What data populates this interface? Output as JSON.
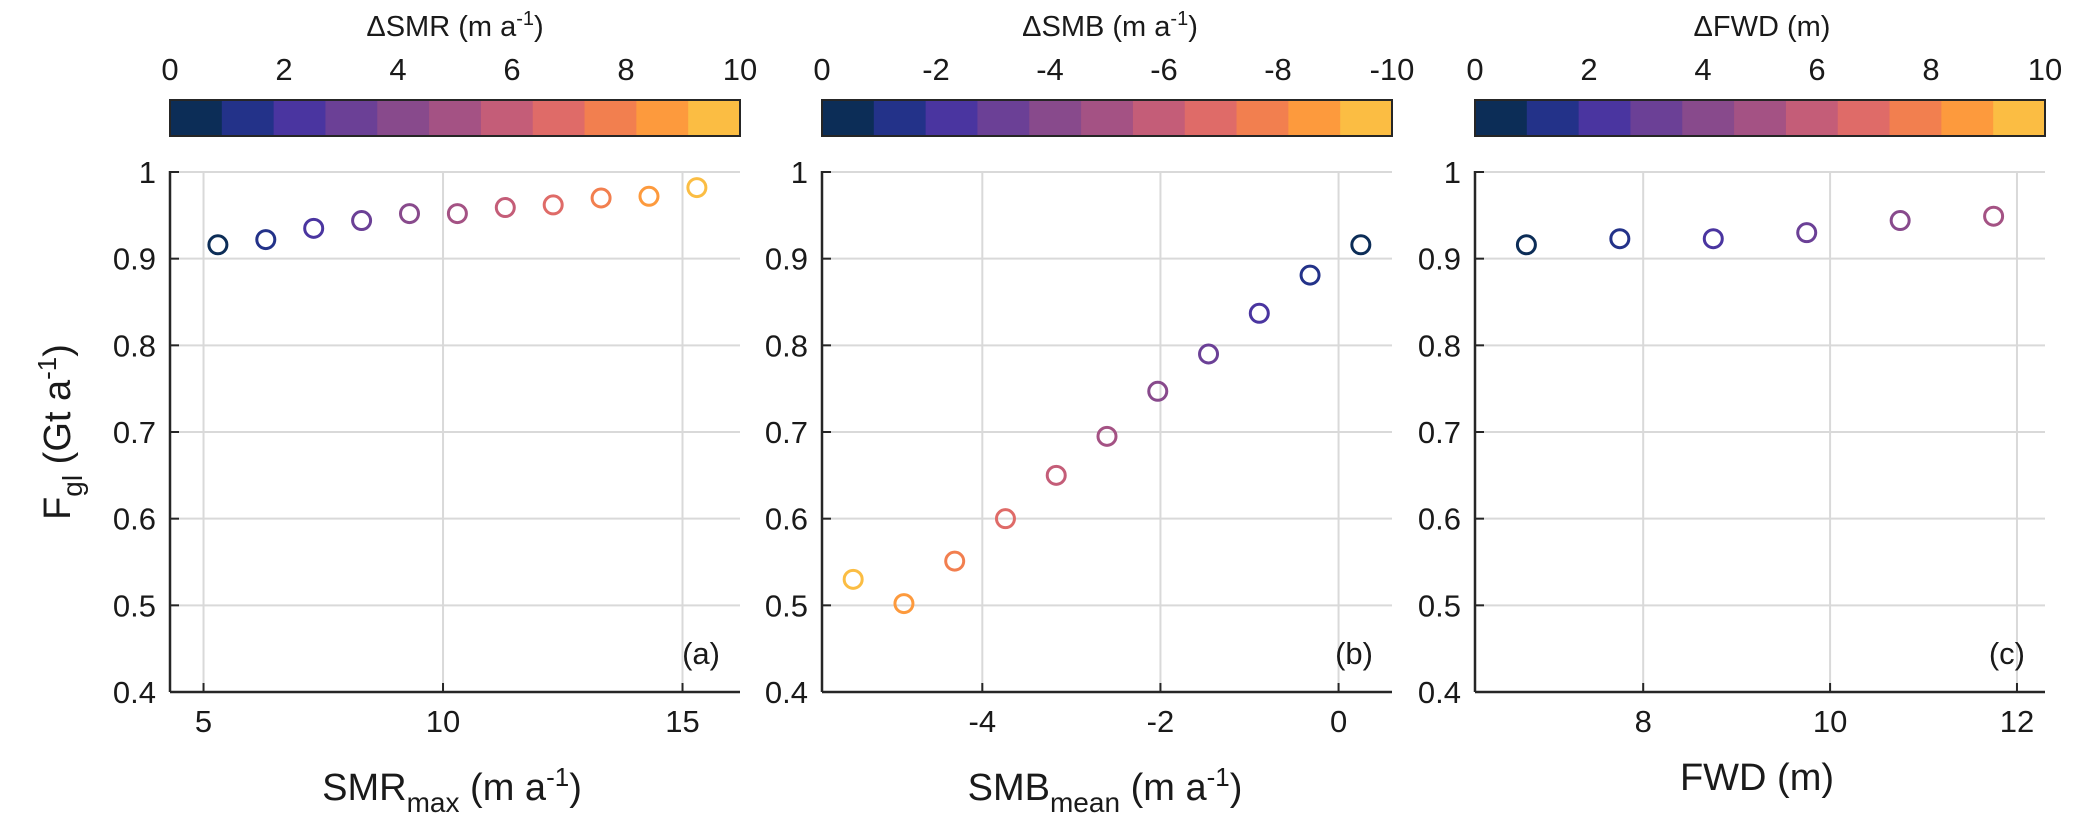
{
  "colors": {
    "colormap": [
      "#0c2d57",
      "#233289",
      "#4a35a0",
      "#6b4096",
      "#884a8c",
      "#a45284",
      "#c45d78",
      "#df6b68",
      "#f27f4f",
      "#fd9a3d",
      "#fbbd43"
    ],
    "grid": "#d9d9d9",
    "axis": "#262626"
  },
  "chart_data": [
    {
      "type": "scatter",
      "panel_label": "(a)",
      "xlabel_main": "SMR",
      "xlabel_sub": "max",
      "xlabel_unit": " (m a",
      "xlabel_sup": "-1",
      "xlabel_close": ")",
      "ylabel_main": "F",
      "ylabel_sub": "gl",
      "ylabel_unit": " (Gt a",
      "ylabel_sup": "-1",
      "ylabel_close": ")",
      "xlim": [
        4.3,
        16.2
      ],
      "ylim": [
        0.4,
        1.0
      ],
      "xticks": [
        5,
        10,
        15
      ],
      "xtick_labels": [
        "5",
        "10",
        "15"
      ],
      "yticks": [
        0.4,
        0.5,
        0.6,
        0.7,
        0.8,
        0.9,
        1.0
      ],
      "ytick_labels": [
        "0.4",
        "0.5",
        "0.6",
        "0.7",
        "0.8",
        "0.9",
        "1"
      ],
      "grid": true,
      "colorbar": {
        "title_main": "ΔSMR (m a",
        "title_sup": "-1",
        "title_close": ")",
        "tick_values": [
          0,
          2,
          4,
          6,
          8,
          10
        ],
        "tick_labels": [
          "0",
          "2",
          "4",
          "6",
          "8",
          "10"
        ],
        "range": [
          0,
          10
        ]
      },
      "points": [
        {
          "x": 5.3,
          "y": 0.916,
          "c": 0
        },
        {
          "x": 6.3,
          "y": 0.922,
          "c": 1
        },
        {
          "x": 7.3,
          "y": 0.935,
          "c": 2
        },
        {
          "x": 8.3,
          "y": 0.944,
          "c": 3
        },
        {
          "x": 9.3,
          "y": 0.952,
          "c": 4
        },
        {
          "x": 10.3,
          "y": 0.952,
          "c": 5
        },
        {
          "x": 11.3,
          "y": 0.959,
          "c": 6
        },
        {
          "x": 12.3,
          "y": 0.962,
          "c": 7
        },
        {
          "x": 13.3,
          "y": 0.97,
          "c": 8
        },
        {
          "x": 14.3,
          "y": 0.972,
          "c": 9
        },
        {
          "x": 15.3,
          "y": 0.982,
          "c": 10
        }
      ]
    },
    {
      "type": "scatter",
      "panel_label": "(b)",
      "xlabel_main": "SMB",
      "xlabel_sub": "mean",
      "xlabel_unit": " (m a",
      "xlabel_sup": "-1",
      "xlabel_close": ")",
      "xlim": [
        -5.8,
        0.6
      ],
      "ylim": [
        0.4,
        1.0
      ],
      "xticks": [
        -4,
        -2,
        0
      ],
      "xtick_labels": [
        "-4",
        "-2",
        "0"
      ],
      "yticks": [
        0.4,
        0.5,
        0.6,
        0.7,
        0.8,
        0.9,
        1.0
      ],
      "ytick_labels": [
        "0.4",
        "0.5",
        "0.6",
        "0.7",
        "0.8",
        "0.9",
        "1"
      ],
      "grid": true,
      "colorbar": {
        "title_main": "ΔSMB (m a",
        "title_sup": "-1",
        "title_close": ")",
        "tick_values": [
          0,
          2,
          4,
          6,
          8,
          10
        ],
        "tick_labels": [
          "0",
          "-2",
          "-4",
          "-6",
          "-8",
          "-10"
        ],
        "range": [
          0,
          10
        ]
      },
      "points": [
        {
          "x": 0.25,
          "y": 0.916,
          "c": 0
        },
        {
          "x": -0.32,
          "y": 0.881,
          "c": 1
        },
        {
          "x": -0.89,
          "y": 0.837,
          "c": 2
        },
        {
          "x": -1.46,
          "y": 0.79,
          "c": 3
        },
        {
          "x": -2.03,
          "y": 0.747,
          "c": 4
        },
        {
          "x": -2.6,
          "y": 0.695,
          "c": 5
        },
        {
          "x": -3.17,
          "y": 0.65,
          "c": 6
        },
        {
          "x": -3.74,
          "y": 0.6,
          "c": 7
        },
        {
          "x": -4.31,
          "y": 0.551,
          "c": 8
        },
        {
          "x": -4.88,
          "y": 0.502,
          "c": 9
        },
        {
          "x": -5.45,
          "y": 0.53,
          "c": 10
        }
      ]
    },
    {
      "type": "scatter",
      "panel_label": "(c)",
      "xlabel_main": "FWD (m)",
      "xlim": [
        6.2,
        12.3
      ],
      "ylim": [
        0.4,
        1.0
      ],
      "xticks": [
        8,
        10,
        12
      ],
      "xtick_labels": [
        "8",
        "10",
        "12"
      ],
      "yticks": [
        0.4,
        0.5,
        0.6,
        0.7,
        0.8,
        0.9,
        1.0
      ],
      "ytick_labels": [
        "0.4",
        "0.5",
        "0.6",
        "0.7",
        "0.8",
        "0.9",
        "1"
      ],
      "grid": true,
      "colorbar": {
        "title_main": "ΔFWD (m)",
        "tick_values": [
          0,
          2,
          4,
          6,
          8,
          10
        ],
        "tick_labels": [
          "0",
          "2",
          "4",
          "6",
          "8",
          "10"
        ],
        "range": [
          0,
          10
        ]
      },
      "points": [
        {
          "x": 6.75,
          "y": 0.916,
          "c": 0
        },
        {
          "x": 7.75,
          "y": 0.923,
          "c": 1
        },
        {
          "x": 8.75,
          "y": 0.923,
          "c": 2
        },
        {
          "x": 9.75,
          "y": 0.93,
          "c": 3
        },
        {
          "x": 10.75,
          "y": 0.944,
          "c": 4
        },
        {
          "x": 11.75,
          "y": 0.949,
          "c": 5
        }
      ]
    }
  ]
}
